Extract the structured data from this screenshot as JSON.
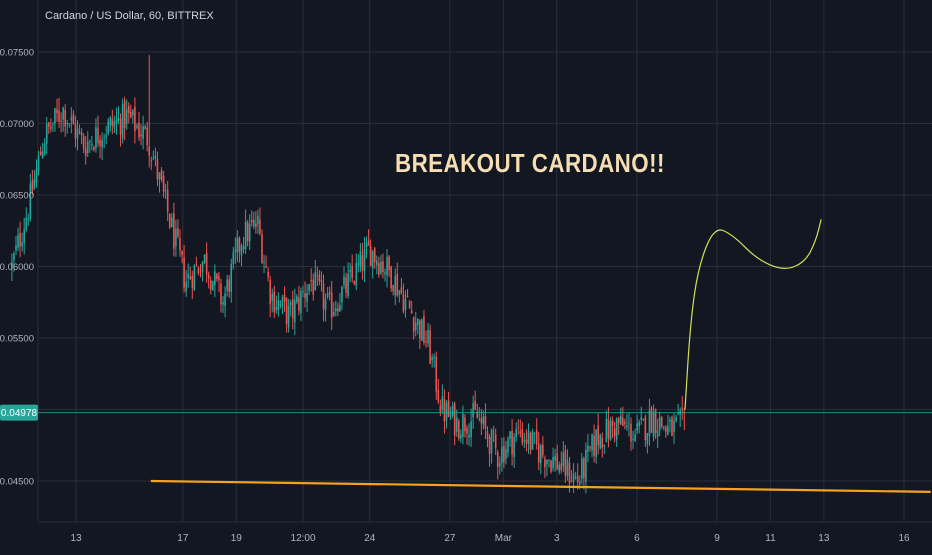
{
  "header": {
    "title": "Cardano / US Dollar, 60, BITTREX"
  },
  "annotation": {
    "text": "BREAKOUT CARDANO!!",
    "color": "#f5deb3"
  },
  "price_tag": {
    "value": "0.04978",
    "color": "#26a69a"
  },
  "colors": {
    "background": "#131722",
    "grid": "#2a2e39",
    "up": "#26a69a",
    "down": "#ef5350",
    "axis_text": "#b2b5be",
    "support_line": "#f7a21b",
    "projection_line": "#d4e157",
    "price_line": "#26a69a"
  },
  "chart_data": {
    "type": "candlestick",
    "title": "Cardano / US Dollar, 60, BITTREX",
    "y_ticks": [
      "0.07500",
      "0.07000",
      "0.06500",
      "0.06000",
      "0.05500",
      "0.04500"
    ],
    "y_tick_values": [
      0.075,
      0.07,
      0.065,
      0.06,
      0.055,
      0.045
    ],
    "ylim": [
      0.0428,
      0.0768
    ],
    "x_ticks": [
      "13",
      "17",
      "19",
      "12:00",
      "24",
      "27",
      "Mar",
      "3",
      "6",
      "9",
      "11",
      "13",
      "16"
    ],
    "x_tick_days": [
      13,
      17,
      19,
      21.5,
      24,
      27,
      29,
      31,
      34,
      37,
      39,
      41,
      44
    ],
    "xlim_days": [
      10.5,
      45.0
    ],
    "last_price": 0.04978,
    "price_path": [
      {
        "day": 10.6,
        "price": 0.06
      },
      {
        "day": 11.2,
        "price": 0.064
      },
      {
        "day": 11.8,
        "price": 0.069
      },
      {
        "day": 12.5,
        "price": 0.071
      },
      {
        "day": 13.3,
        "price": 0.0685
      },
      {
        "day": 14.0,
        "price": 0.0695
      },
      {
        "day": 14.9,
        "price": 0.0705
      },
      {
        "day": 15.7,
        "price": 0.069
      },
      {
        "day": 16.4,
        "price": 0.064
      },
      {
        "day": 17.1,
        "price": 0.059
      },
      {
        "day": 17.8,
        "price": 0.0605
      },
      {
        "day": 18.5,
        "price": 0.0575
      },
      {
        "day": 19.2,
        "price": 0.062
      },
      {
        "day": 19.8,
        "price": 0.063
      },
      {
        "day": 20.3,
        "price": 0.058
      },
      {
        "day": 21.0,
        "price": 0.0565
      },
      {
        "day": 21.8,
        "price": 0.059
      },
      {
        "day": 22.5,
        "price": 0.057
      },
      {
        "day": 23.3,
        "price": 0.059
      },
      {
        "day": 24.0,
        "price": 0.0612
      },
      {
        "day": 24.8,
        "price": 0.0595
      },
      {
        "day": 25.5,
        "price": 0.057
      },
      {
        "day": 26.2,
        "price": 0.0545
      },
      {
        "day": 26.7,
        "price": 0.05
      },
      {
        "day": 27.3,
        "price": 0.049
      },
      {
        "day": 28.0,
        "price": 0.0495
      },
      {
        "day": 28.8,
        "price": 0.0468
      },
      {
        "day": 29.6,
        "price": 0.0485
      },
      {
        "day": 30.4,
        "price": 0.047
      },
      {
        "day": 31.1,
        "price": 0.0462
      },
      {
        "day": 31.8,
        "price": 0.045
      },
      {
        "day": 32.5,
        "price": 0.048
      },
      {
        "day": 33.3,
        "price": 0.049
      },
      {
        "day": 34.0,
        "price": 0.0482
      },
      {
        "day": 34.6,
        "price": 0.0495
      },
      {
        "day": 35.2,
        "price": 0.0485
      },
      {
        "day": 35.8,
        "price": 0.049
      }
    ],
    "support_line": [
      {
        "day": 15.8,
        "price": 0.045
      },
      {
        "day": 45.0,
        "price": 0.0448
      }
    ],
    "projection": [
      {
        "day": 35.8,
        "price": 0.05
      },
      {
        "day": 36.0,
        "price": 0.056
      },
      {
        "day": 36.3,
        "price": 0.06
      },
      {
        "day": 36.9,
        "price": 0.0628
      },
      {
        "day": 37.6,
        "price": 0.0622
      },
      {
        "day": 38.5,
        "price": 0.0605
      },
      {
        "day": 39.5,
        "price": 0.0597
      },
      {
        "day": 40.3,
        "price": 0.0603
      },
      {
        "day": 40.7,
        "price": 0.0618
      },
      {
        "day": 40.9,
        "price": 0.0633
      }
    ]
  }
}
